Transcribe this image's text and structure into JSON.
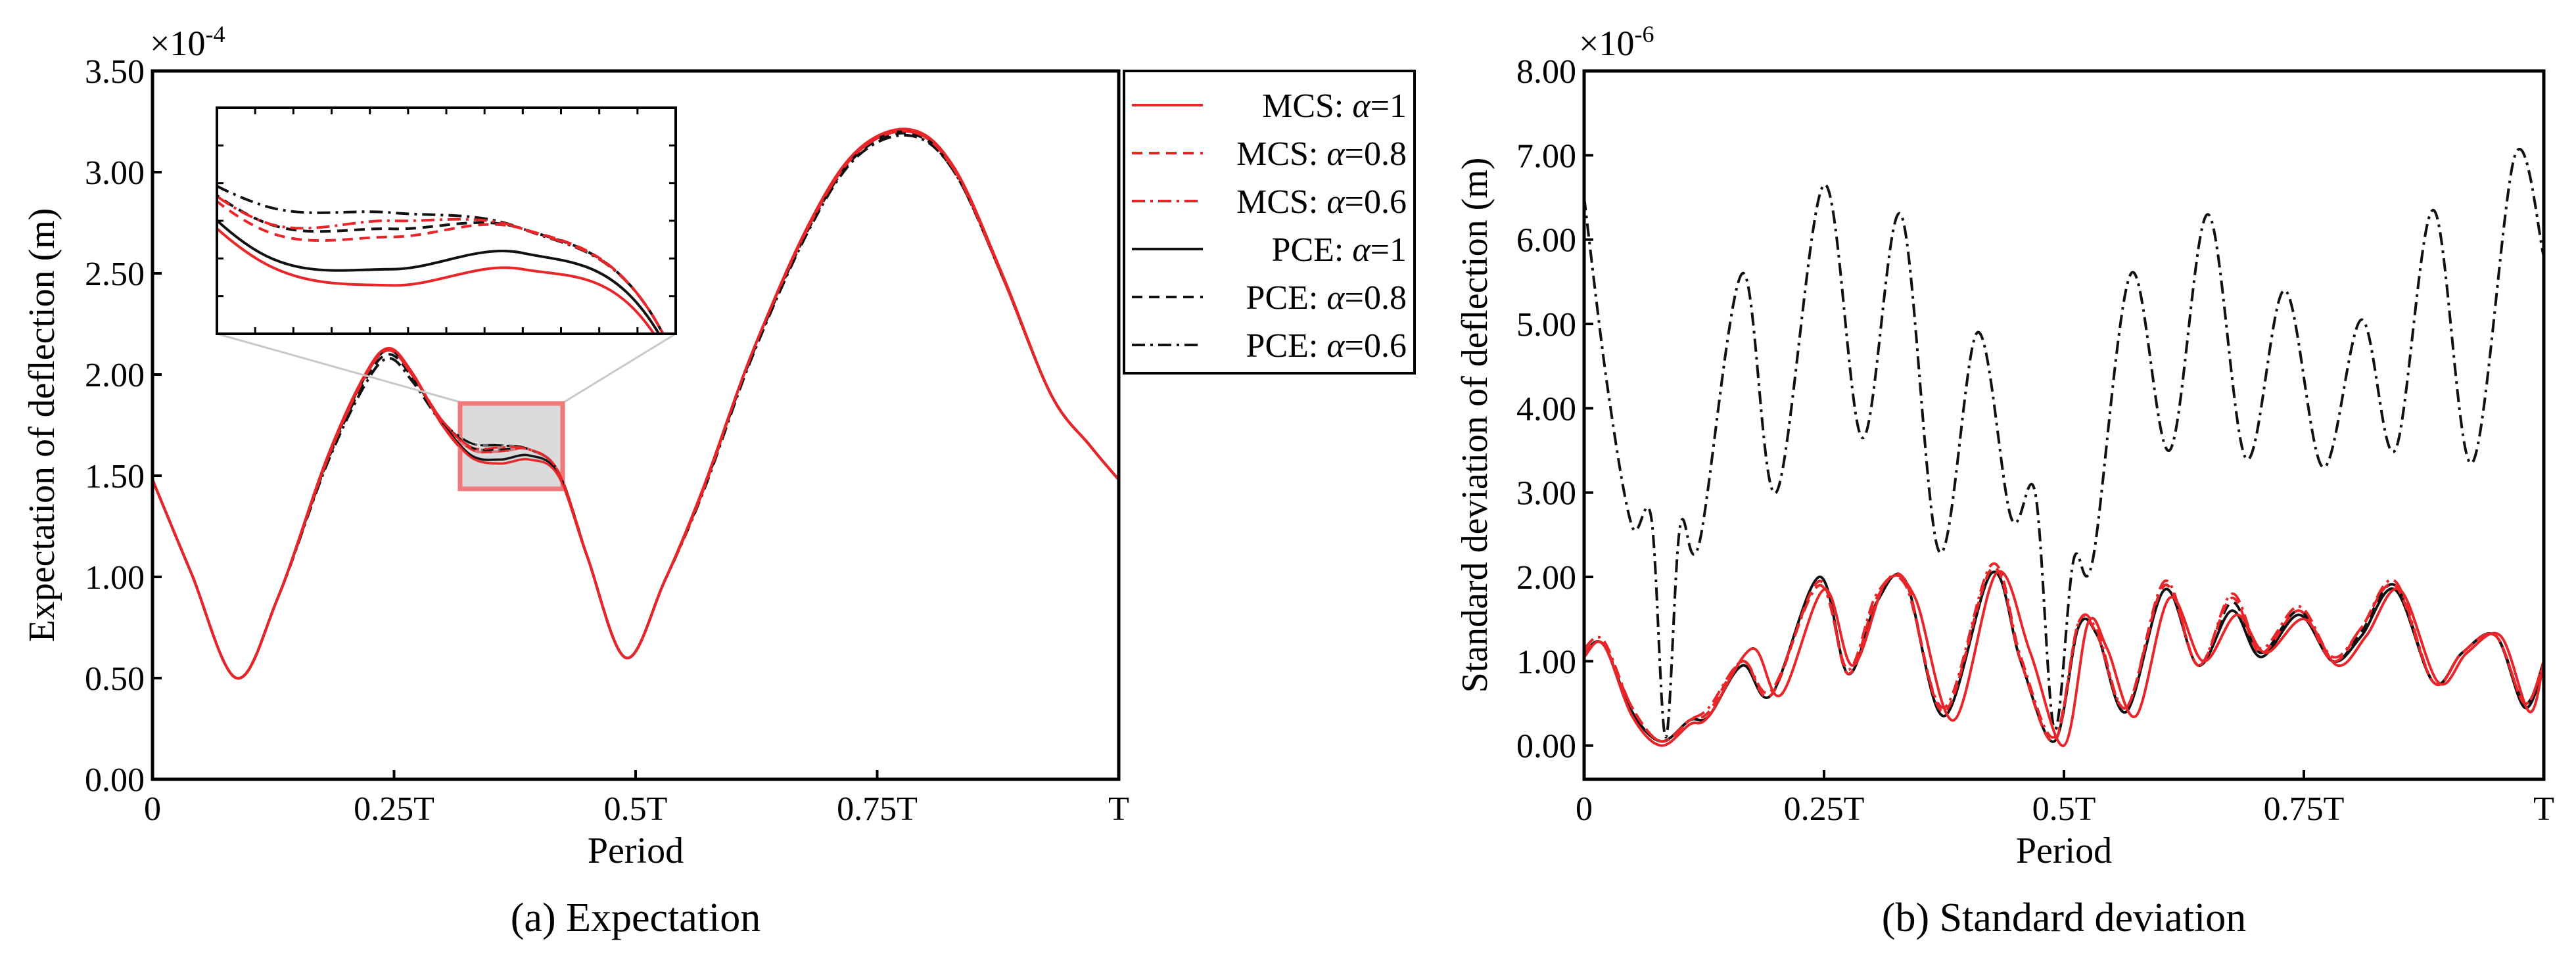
{
  "chart_data": [
    {
      "type": "line",
      "title": "",
      "caption": "(a) Expectation",
      "xlabel": "Period",
      "ylabel": "Expectation of deflection (m)",
      "y_multiplier": "×10",
      "y_exponent": "-4",
      "xlim": [
        0,
        1
      ],
      "ylim": [
        0,
        3.5
      ],
      "xtick_values": [
        0,
        0.25,
        0.5,
        0.75,
        1
      ],
      "xtick_labels": [
        "0",
        "0.25T",
        "0.5T",
        "0.75T",
        "T"
      ],
      "ytick_values": [
        0,
        0.5,
        1.0,
        1.5,
        2.0,
        2.5,
        3.0,
        3.5
      ],
      "ytick_labels": [
        "0.00",
        "0.50",
        "1.00",
        "1.50",
        "2.00",
        "2.50",
        "3.00",
        "3.50"
      ],
      "legend_position": "outside-right",
      "legend": [
        {
          "method": "MCS: ",
          "symbol": "α",
          "value": "=1",
          "color": "#e8262a",
          "dash": "solid"
        },
        {
          "method": "MCS: ",
          "symbol": "α",
          "value": "=0.8",
          "color": "#e8262a",
          "dash": "dashed"
        },
        {
          "method": "MCS: ",
          "symbol": "α",
          "value": "=0.6",
          "color": "#e8262a",
          "dash": "dashdot"
        },
        {
          "method": "PCE: ",
          "symbol": "α",
          "value": "=1",
          "color": "#111111",
          "dash": "solid"
        },
        {
          "method": "PCE: ",
          "symbol": "α",
          "value": "=0.8",
          "color": "#111111",
          "dash": "dashed"
        },
        {
          "method": "PCE: ",
          "symbol": "α",
          "value": "=0.6",
          "color": "#111111",
          "dash": "dashdot"
        }
      ],
      "series": [
        {
          "name": "PCE: α=0.6",
          "color": "#111111",
          "dash": "dashdot",
          "x": [
            0,
            0.04,
            0.087,
            0.13,
            0.18,
            0.22,
            0.245,
            0.27,
            0.3,
            0.33,
            0.36,
            0.39,
            0.42,
            0.45,
            0.49,
            0.53,
            0.57,
            0.62,
            0.68,
            0.73,
            0.785,
            0.83,
            0.88,
            0.93,
            0.97,
            1.0
          ],
          "y": [
            1.48,
            1.02,
            0.5,
            0.9,
            1.55,
            1.95,
            2.08,
            1.96,
            1.76,
            1.66,
            1.65,
            1.63,
            1.52,
            1.1,
            0.6,
            0.98,
            1.42,
            2.08,
            2.72,
            3.08,
            3.18,
            3.0,
            2.48,
            1.9,
            1.65,
            1.48
          ]
        },
        {
          "name": "PCE: α=0.8",
          "color": "#111111",
          "dash": "dashed",
          "x": [
            0,
            0.04,
            0.087,
            0.13,
            0.18,
            0.22,
            0.245,
            0.27,
            0.3,
            0.33,
            0.36,
            0.39,
            0.42,
            0.45,
            0.49,
            0.53,
            0.57,
            0.62,
            0.68,
            0.73,
            0.785,
            0.83,
            0.88,
            0.93,
            0.97,
            1.0
          ],
          "y": [
            1.48,
            1.02,
            0.5,
            0.9,
            1.56,
            1.97,
            2.1,
            1.98,
            1.77,
            1.64,
            1.63,
            1.63,
            1.52,
            1.1,
            0.6,
            0.98,
            1.43,
            2.09,
            2.73,
            3.09,
            3.19,
            3.0,
            2.48,
            1.9,
            1.65,
            1.48
          ]
        },
        {
          "name": "PCE: α=1",
          "color": "#111111",
          "dash": "solid",
          "x": [
            0,
            0.04,
            0.087,
            0.13,
            0.18,
            0.22,
            0.245,
            0.27,
            0.3,
            0.33,
            0.36,
            0.39,
            0.42,
            0.45,
            0.49,
            0.53,
            0.57,
            0.62,
            0.68,
            0.73,
            0.785,
            0.83,
            0.88,
            0.93,
            0.97,
            1.0
          ],
          "y": [
            1.48,
            1.02,
            0.5,
            0.9,
            1.57,
            1.99,
            2.12,
            1.99,
            1.76,
            1.6,
            1.58,
            1.6,
            1.51,
            1.1,
            0.6,
            0.98,
            1.43,
            2.1,
            2.74,
            3.1,
            3.2,
            3.01,
            2.48,
            1.9,
            1.65,
            1.48
          ]
        },
        {
          "name": "MCS: α=0.6",
          "color": "#e8262a",
          "dash": "dashdot",
          "x": [
            0,
            0.04,
            0.087,
            0.13,
            0.18,
            0.22,
            0.245,
            0.27,
            0.3,
            0.33,
            0.36,
            0.39,
            0.42,
            0.45,
            0.49,
            0.53,
            0.57,
            0.62,
            0.68,
            0.73,
            0.785,
            0.83,
            0.88,
            0.93,
            0.97,
            1.0
          ],
          "y": [
            1.48,
            1.02,
            0.5,
            0.9,
            1.57,
            1.99,
            2.12,
            1.99,
            1.77,
            1.64,
            1.64,
            1.63,
            1.52,
            1.1,
            0.6,
            0.98,
            1.43,
            2.1,
            2.74,
            3.1,
            3.2,
            3.01,
            2.48,
            1.9,
            1.65,
            1.48
          ]
        },
        {
          "name": "MCS: α=0.8",
          "color": "#e8262a",
          "dash": "dashed",
          "x": [
            0,
            0.04,
            0.087,
            0.13,
            0.18,
            0.22,
            0.245,
            0.27,
            0.3,
            0.33,
            0.36,
            0.39,
            0.42,
            0.45,
            0.49,
            0.53,
            0.57,
            0.62,
            0.68,
            0.73,
            0.785,
            0.83,
            0.88,
            0.93,
            0.97,
            1.0
          ],
          "y": [
            1.48,
            1.02,
            0.5,
            0.9,
            1.57,
            1.99,
            2.12,
            1.99,
            1.77,
            1.63,
            1.62,
            1.63,
            1.52,
            1.1,
            0.6,
            0.98,
            1.43,
            2.1,
            2.74,
            3.1,
            3.2,
            3.01,
            2.48,
            1.9,
            1.65,
            1.48
          ]
        },
        {
          "name": "MCS: α=1",
          "color": "#e8262a",
          "dash": "solid",
          "x": [
            0,
            0.04,
            0.087,
            0.13,
            0.18,
            0.22,
            0.245,
            0.27,
            0.3,
            0.33,
            0.36,
            0.39,
            0.42,
            0.45,
            0.49,
            0.53,
            0.57,
            0.62,
            0.68,
            0.73,
            0.785,
            0.83,
            0.88,
            0.93,
            0.97,
            1.0
          ],
          "y": [
            1.48,
            1.02,
            0.5,
            0.9,
            1.58,
            2.0,
            2.13,
            2.0,
            1.75,
            1.59,
            1.56,
            1.58,
            1.5,
            1.1,
            0.6,
            0.98,
            1.44,
            2.1,
            2.75,
            3.11,
            3.21,
            3.02,
            2.49,
            1.9,
            1.65,
            1.48
          ]
        }
      ],
      "inset": {
        "zoom_xlim": [
          0.32,
          0.425
        ],
        "zoom_ylim": [
          1.45,
          1.85
        ],
        "inset_ylim": [
          1.5,
          1.78
        ]
      }
    },
    {
      "type": "line",
      "title": "",
      "caption": "(b) Standard deviation",
      "xlabel": "Period",
      "ylabel": "Standard deviation of deflection (m)",
      "y_multiplier": "×10",
      "y_exponent": "-6",
      "xlim": [
        0,
        1
      ],
      "ylim": [
        -0.4,
        8.0
      ],
      "xtick_values": [
        0,
        0.25,
        0.5,
        0.75,
        1
      ],
      "xtick_labels": [
        "0",
        "0.25T",
        "0.5T",
        "0.75T",
        "T"
      ],
      "ytick_values": [
        0,
        1,
        2,
        3,
        4,
        5,
        6,
        7,
        8
      ],
      "ytick_labels": [
        "0.00",
        "1.00",
        "2.00",
        "3.00",
        "4.00",
        "5.00",
        "6.00",
        "7.00",
        "8.00"
      ],
      "series": [
        {
          "name": "PCE: α=0.6",
          "color": "#111111",
          "dash": "dashdot",
          "x": [
            0,
            0.025,
            0.05,
            0.07,
            0.085,
            0.1,
            0.12,
            0.165,
            0.2,
            0.25,
            0.29,
            0.33,
            0.37,
            0.41,
            0.445,
            0.47,
            0.49,
            0.51,
            0.53,
            0.57,
            0.61,
            0.65,
            0.69,
            0.73,
            0.77,
            0.81,
            0.845,
            0.885,
            0.925,
            0.97,
            1.0
          ],
          "y": [
            6.5,
            4.2,
            2.6,
            2.7,
            0.1,
            2.6,
            2.4,
            5.6,
            3.0,
            6.65,
            3.65,
            6.3,
            2.3,
            4.9,
            2.7,
            3.0,
            0.2,
            2.2,
            2.2,
            5.6,
            3.5,
            6.3,
            3.4,
            5.4,
            3.3,
            5.05,
            3.5,
            6.35,
            3.35,
            7.0,
            5.8
          ]
        },
        {
          "name": "PCE: α=0.8",
          "color": "#111111",
          "dash": "dashed",
          "x": [
            0,
            0.02,
            0.05,
            0.08,
            0.11,
            0.13,
            0.165,
            0.195,
            0.245,
            0.275,
            0.305,
            0.335,
            0.375,
            0.425,
            0.455,
            0.49,
            0.515,
            0.535,
            0.565,
            0.605,
            0.64,
            0.675,
            0.705,
            0.745,
            0.78,
            0.81,
            0.845,
            0.885,
            0.915,
            0.95,
            0.98,
            1.0
          ],
          "y": [
            1.1,
            1.2,
            0.45,
            0.05,
            0.3,
            0.4,
            1.0,
            0.6,
            1.95,
            0.85,
            1.75,
            1.95,
            0.4,
            2.1,
            1.0,
            0.05,
            1.45,
            1.3,
            0.45,
            1.9,
            0.95,
            1.7,
            1.1,
            1.6,
            1.0,
            1.35,
            1.9,
            0.75,
            1.1,
            1.3,
            0.5,
            1.0
          ]
        },
        {
          "name": "PCE: α=1",
          "color": "#111111",
          "dash": "solid",
          "x": [
            0,
            0.02,
            0.05,
            0.08,
            0.11,
            0.13,
            0.165,
            0.195,
            0.245,
            0.275,
            0.305,
            0.335,
            0.375,
            0.425,
            0.455,
            0.49,
            0.515,
            0.535,
            0.565,
            0.605,
            0.64,
            0.675,
            0.705,
            0.745,
            0.78,
            0.81,
            0.845,
            0.885,
            0.915,
            0.95,
            0.98,
            1.0
          ],
          "y": [
            1.1,
            1.2,
            0.4,
            0.05,
            0.3,
            0.35,
            0.95,
            0.6,
            2.0,
            0.85,
            1.7,
            1.95,
            0.35,
            2.05,
            1.0,
            0.05,
            1.4,
            1.3,
            0.4,
            1.85,
            0.95,
            1.6,
            1.05,
            1.55,
            1.0,
            1.3,
            1.85,
            0.75,
            1.1,
            1.3,
            0.45,
            0.95
          ]
        },
        {
          "name": "MCS: α=0.6",
          "color": "#e8262a",
          "dash": "dashdot",
          "x": [
            0,
            0.02,
            0.05,
            0.08,
            0.11,
            0.13,
            0.165,
            0.195,
            0.245,
            0.275,
            0.305,
            0.335,
            0.375,
            0.425,
            0.455,
            0.49,
            0.515,
            0.535,
            0.565,
            0.605,
            0.64,
            0.675,
            0.705,
            0.745,
            0.78,
            0.81,
            0.845,
            0.885,
            0.915,
            0.95,
            0.98,
            1.0
          ],
          "y": [
            1.15,
            1.25,
            0.45,
            0.05,
            0.3,
            0.45,
            1.0,
            0.65,
            1.9,
            0.9,
            1.8,
            1.9,
            0.45,
            2.15,
            1.05,
            0.1,
            1.45,
            1.35,
            0.45,
            1.95,
            0.95,
            1.8,
            1.15,
            1.65,
            1.05,
            1.4,
            1.95,
            0.75,
            1.1,
            1.3,
            0.5,
            1.0
          ]
        },
        {
          "name": "MCS: α=0.8",
          "color": "#e8262a",
          "dash": "dashed",
          "x": [
            0,
            0.02,
            0.05,
            0.08,
            0.11,
            0.13,
            0.165,
            0.195,
            0.245,
            0.275,
            0.305,
            0.335,
            0.375,
            0.425,
            0.455,
            0.49,
            0.515,
            0.535,
            0.565,
            0.605,
            0.64,
            0.675,
            0.705,
            0.745,
            0.78,
            0.81,
            0.845,
            0.885,
            0.915,
            0.95,
            0.98,
            1.0
          ],
          "y": [
            1.1,
            1.2,
            0.45,
            0.05,
            0.3,
            0.4,
            1.0,
            0.6,
            1.95,
            0.85,
            1.75,
            1.95,
            0.4,
            2.1,
            1.0,
            0.05,
            1.45,
            1.3,
            0.45,
            1.9,
            0.95,
            1.75,
            1.1,
            1.6,
            1.0,
            1.4,
            1.9,
            0.75,
            1.1,
            1.3,
            0.5,
            1.0
          ]
        },
        {
          "name": "MCS: α=1",
          "color": "#e8262a",
          "dash": "solid",
          "x": [
            0,
            0.02,
            0.05,
            0.08,
            0.11,
            0.13,
            0.175,
            0.205,
            0.25,
            0.28,
            0.315,
            0.345,
            0.385,
            0.43,
            0.465,
            0.5,
            0.525,
            0.545,
            0.575,
            0.61,
            0.645,
            0.68,
            0.71,
            0.75,
            0.785,
            0.815,
            0.85,
            0.89,
            0.92,
            0.955,
            0.985,
            1.0
          ],
          "y": [
            1.05,
            1.2,
            0.35,
            0.0,
            0.25,
            0.35,
            1.15,
            0.6,
            1.85,
            0.95,
            1.95,
            1.75,
            0.3,
            2.05,
            1.1,
            0.0,
            1.45,
            1.15,
            0.35,
            1.75,
            1.0,
            1.55,
            1.1,
            1.5,
            0.95,
            1.3,
            1.85,
            0.75,
            1.1,
            1.3,
            0.4,
            1.0
          ]
        }
      ]
    }
  ]
}
